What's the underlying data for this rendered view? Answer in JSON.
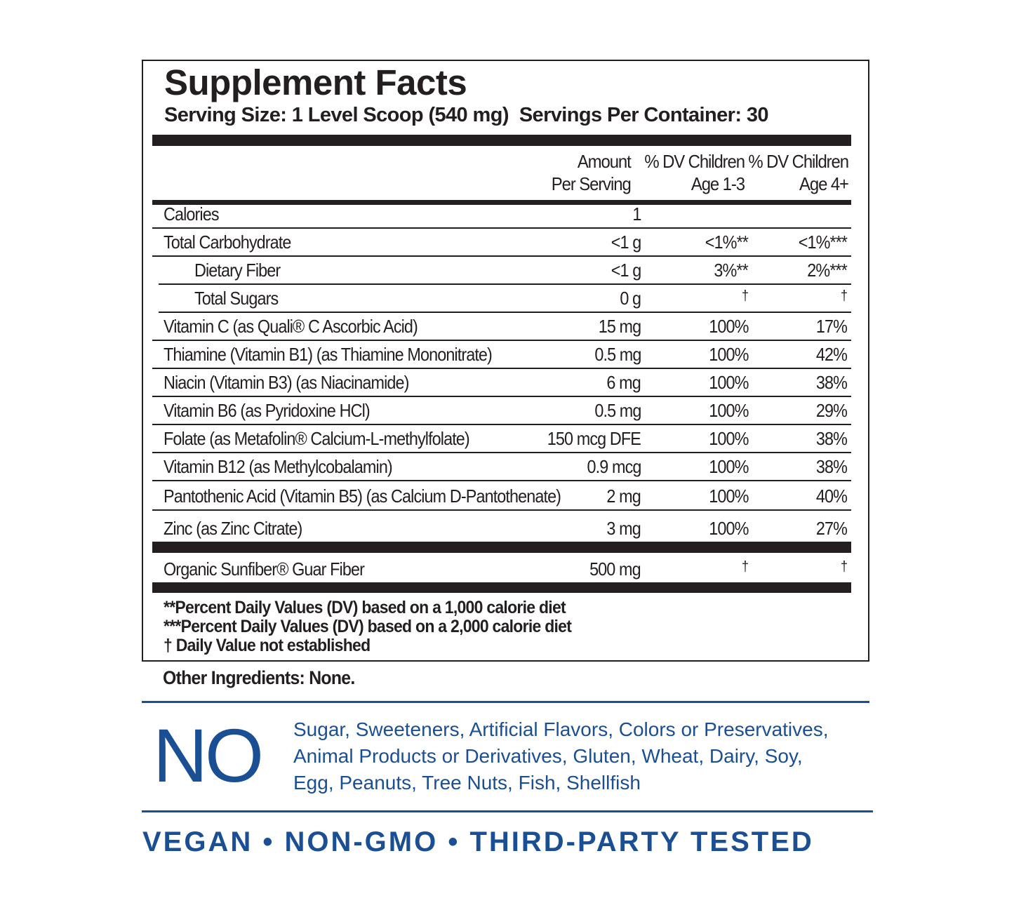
{
  "title": "Supplement Facts",
  "serving_line": "Serving Size: 1 Level Scoop (540 mg)  Servings Per Container: 30",
  "headers": {
    "amount": [
      "Amount",
      "Per Serving"
    ],
    "dv_1_3": [
      "% DV Children",
      "Age 1-3"
    ],
    "dv_4": [
      "% DV Children",
      "Age 4+"
    ]
  },
  "rows": [
    {
      "name": "Calories",
      "amount": "1",
      "dv_1_3": "",
      "dv_4": ""
    },
    {
      "name": "Total Carbohydrate",
      "amount": "<1 g",
      "dv_1_3": "<1%**",
      "dv_4": "<1%***"
    },
    {
      "name": "Dietary Fiber",
      "amount": "<1 g",
      "dv_1_3": "3%**",
      "dv_4": "2%***",
      "indent": true
    },
    {
      "name": "Total Sugars",
      "amount": "0 g",
      "dv_1_3": "†",
      "dv_4": "†",
      "indent": true
    },
    {
      "name": "Vitamin C (as Quali® C  Ascorbic Acid)",
      "amount": "15 mg",
      "dv_1_3": "100%",
      "dv_4": "17%"
    },
    {
      "name": "Thiamine (Vitamin B1) (as Thiamine Mononitrate)",
      "amount": "0.5 mg",
      "dv_1_3": "100%",
      "dv_4": "42%"
    },
    {
      "name": "Niacin (Vitamin B3) (as Niacinamide)",
      "amount": "6 mg",
      "dv_1_3": "100%",
      "dv_4": "38%"
    },
    {
      "name": "Vitamin B6 (as Pyridoxine HCl)",
      "amount": "0.5 mg",
      "dv_1_3": "100%",
      "dv_4": "29%"
    },
    {
      "name": "Folate (as Metafolin® Calcium-L-methylfolate)",
      "amount": "150 mcg DFE",
      "dv_1_3": "100%",
      "dv_4": "38%"
    },
    {
      "name": "Vitamin B12 (as Methylcobalamin)",
      "amount": "0.9 mcg",
      "dv_1_3": "100%",
      "dv_4": "38%"
    },
    {
      "name": "Pantothenic Acid (Vitamin B5) (as Calcium D-Pantothenate)",
      "amount": "2 mg",
      "dv_1_3": "100%",
      "dv_4": "40%"
    },
    {
      "name": "Zinc (as Zinc Citrate)",
      "amount": "3 mg",
      "dv_1_3": "100%",
      "dv_4": "27%"
    }
  ],
  "other_row": {
    "name": "Organic Sunfiber® Guar Fiber",
    "amount": "500 mg",
    "dv_1_3": "†",
    "dv_4": "†"
  },
  "footnotes": [
    "**Percent Daily Values (DV) based on a 1,000 calorie diet",
    "***Percent Daily Values (DV) based on a 2,000 calorie diet",
    "† Daily Value not established"
  ],
  "other_ingredients": "Other Ingredients: None.",
  "free_from": {
    "label": "NO",
    "lines": [
      "Sugar, Sweeteners, Artificial Flavors, Colors or Preservatives,",
      "Animal Products or Derivatives, Gluten, Wheat, Dairy, Soy,",
      "Egg, Peanuts, Tree Nuts, Fish, Shellfish"
    ]
  },
  "tagline": "VEGAN • NON-GMO • THIRD-PARTY TESTED",
  "colors": {
    "text": "#231f20",
    "brand_blue": "#1b4f93"
  }
}
